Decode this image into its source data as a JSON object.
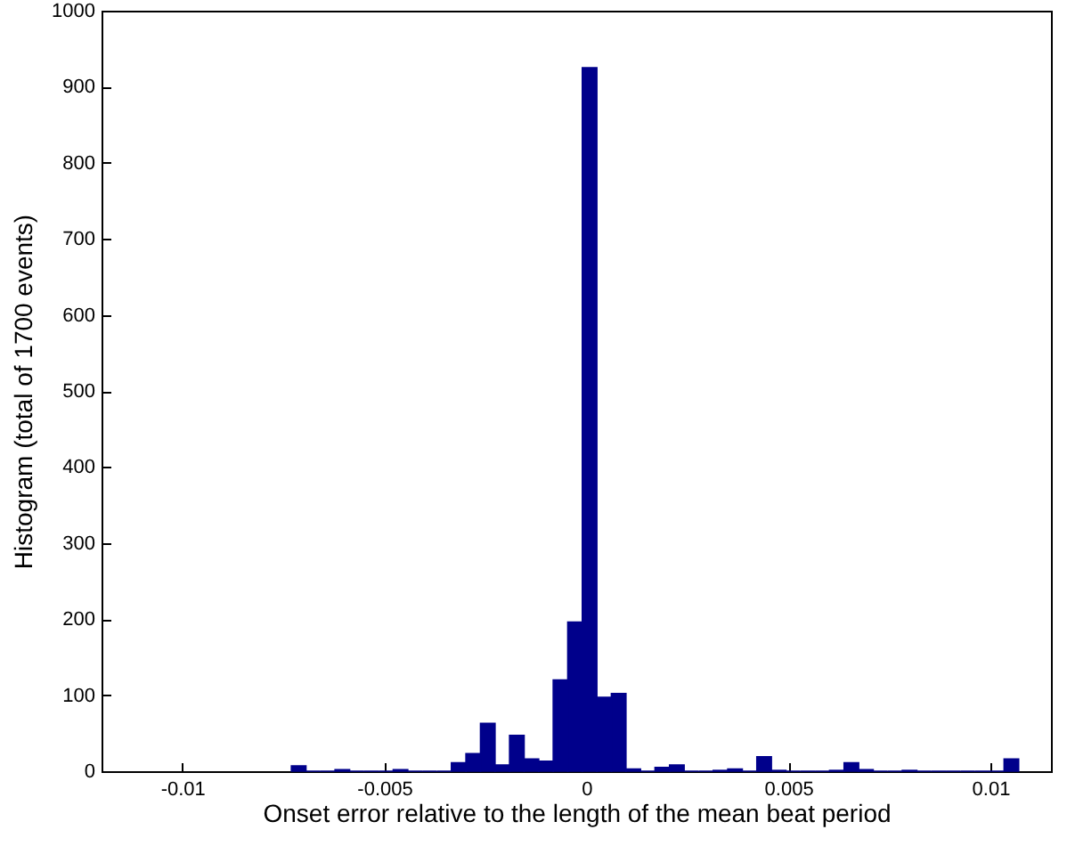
{
  "chart_data": {
    "type": "histogram",
    "xlabel": "Onset error relative to the length of the mean beat period",
    "ylabel": "Histogram (total of 1700 events)",
    "bins": [
      -0.0073,
      -0.00694,
      -0.00658,
      -0.00622,
      -0.00586,
      -0.0055,
      -0.00514,
      -0.00478,
      -0.00442,
      -0.00406,
      -0.0037,
      -0.00334,
      -0.00298,
      -0.00262,
      -0.00226,
      -0.0019,
      -0.00154,
      -0.00118,
      -0.00082,
      -0.00046,
      -0.0001,
      0.00026,
      0.00062,
      0.00098,
      0.00134,
      0.0017,
      0.00206,
      0.00242,
      0.00278,
      0.00314,
      0.0035,
      0.00386,
      0.00422,
      0.00458,
      0.00494,
      0.0053,
      0.00566,
      0.00602,
      0.00638,
      0.00674,
      0.0071,
      0.00746,
      0.00782,
      0.00818,
      0.00854,
      0.0089,
      0.00926,
      0.00962,
      0.00998,
      0.01034,
      0.0107
    ],
    "values": [
      7,
      0,
      0,
      2,
      0,
      0,
      0,
      2,
      0,
      0,
      0,
      11,
      23,
      63,
      8,
      47,
      16,
      13,
      120,
      196,
      925,
      97,
      102,
      3,
      0,
      5,
      8,
      0,
      0,
      1,
      3,
      0,
      19,
      1,
      0,
      0,
      0,
      1,
      11,
      2,
      0,
      0,
      1,
      0,
      0,
      0,
      0,
      0,
      0,
      16
    ],
    "color": "#00008b",
    "xlim": [
      -0.012,
      0.0115
    ],
    "xticks": [
      -0.01,
      -0.005,
      0,
      0.005,
      0.01
    ],
    "ylim": [
      0,
      1000
    ],
    "yticks": [
      0,
      100,
      200,
      300,
      400,
      500,
      600,
      700,
      800,
      900,
      1000
    ],
    "grid": false
  }
}
